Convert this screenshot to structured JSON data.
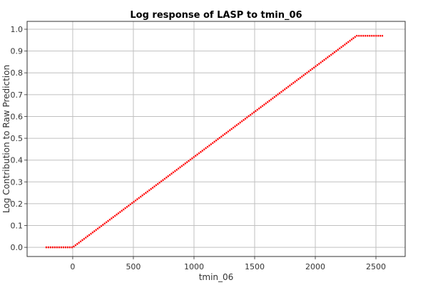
{
  "chart_data": {
    "type": "line",
    "title": "Log response of LASP to tmin_06",
    "xlabel": "tmin_06",
    "ylabel": "Log Contribution to Raw Prediction",
    "x": [
      -224,
      0,
      2341,
      2559
    ],
    "series": [
      {
        "color": "#ff0000",
        "values": [
          0,
          0,
          0.97,
          0.97
        ]
      }
    ],
    "xlim": [
      -376,
      2741
    ],
    "ylim": [
      -0.042,
      1.036
    ],
    "xticks": [
      0,
      500,
      1000,
      1500,
      2000,
      2500
    ],
    "yticks": [
      {
        "value": 0,
        "label": "0.0"
      },
      0.1,
      0.2,
      0.3,
      0.4,
      0.5,
      0.6,
      0.7,
      0.8,
      0.9,
      {
        "value": 1,
        "label": "1.0"
      }
    ],
    "grid": true
  }
}
